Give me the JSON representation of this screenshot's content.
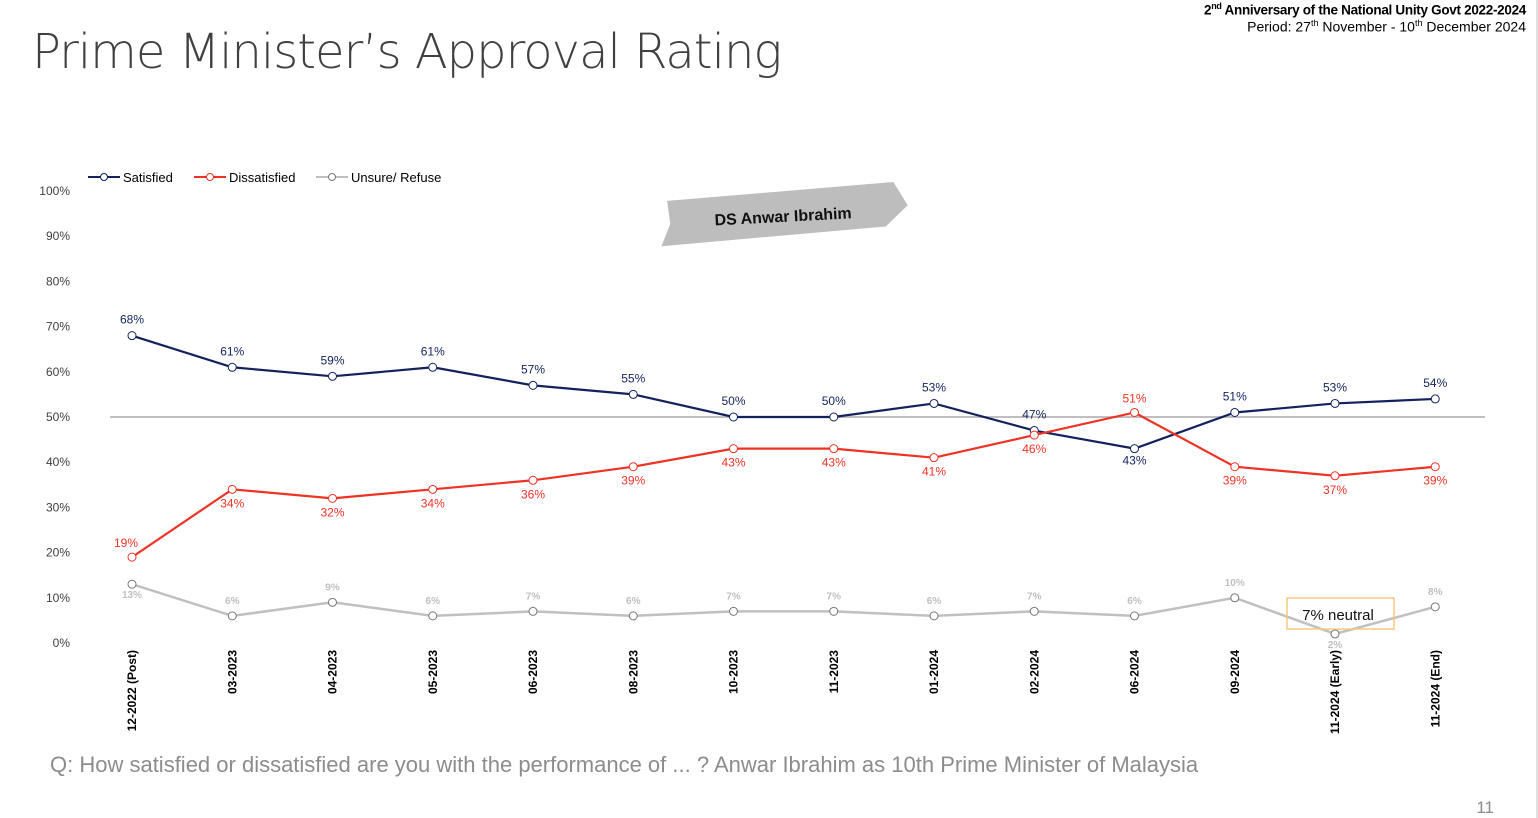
{
  "header": {
    "title": "Prime Minister’s Approval Rating",
    "sub_title_sup": "nd",
    "sub_title_pre": "2",
    "sub_title": " Anniversary of the National Unity Govt 2022-2024",
    "period_pre": "Period: 27",
    "period_sup1": "th",
    "period_mid": " November - 10",
    "period_sup2": "th",
    "period_post": " December 2024"
  },
  "banner": "DS Anwar Ibrahim",
  "annotation": "7% neutral",
  "question": "Q: How satisfied or dissatisfied are you with the performance of ... ? Anwar Ibrahim as 10th Prime Minister of Malaysia",
  "page_number": "11",
  "colors": {
    "satisfied": "#13225e",
    "dissatisfied": "#ee3224",
    "unsure": "#c0c0c0",
    "reference": "#bfbfbf",
    "annotation_border": "#f5c97a"
  },
  "chart_data": {
    "type": "line",
    "categories": [
      "12-2022 (Post)",
      "03-2023",
      "04-2023",
      "05-2023",
      "06-2023",
      "08-2023",
      "10-2023",
      "11-2023",
      "01-2024",
      "02-2024",
      "06-2024",
      "09-2024",
      "11-2024 (Early)",
      "11-2024 (End)"
    ],
    "series": [
      {
        "name": "Satisfied",
        "values": [
          68,
          61,
          59,
          61,
          57,
          55,
          50,
          50,
          53,
          47,
          43,
          51,
          53,
          54
        ]
      },
      {
        "name": "Dissatisfied",
        "values": [
          19,
          34,
          32,
          34,
          36,
          39,
          43,
          43,
          41,
          46,
          51,
          39,
          37,
          39
        ]
      },
      {
        "name": "Unsure/ Refuse",
        "values": [
          13,
          6,
          9,
          6,
          7,
          6,
          7,
          7,
          6,
          7,
          6,
          10,
          2,
          8
        ]
      }
    ],
    "ylim": [
      0,
      100
    ],
    "yticks": [
      "0%",
      "10%",
      "20%",
      "30%",
      "40%",
      "50%",
      "60%",
      "70%",
      "80%",
      "90%",
      "100%"
    ],
    "reference_line": 50,
    "grid": false,
    "legend": "top-left"
  }
}
